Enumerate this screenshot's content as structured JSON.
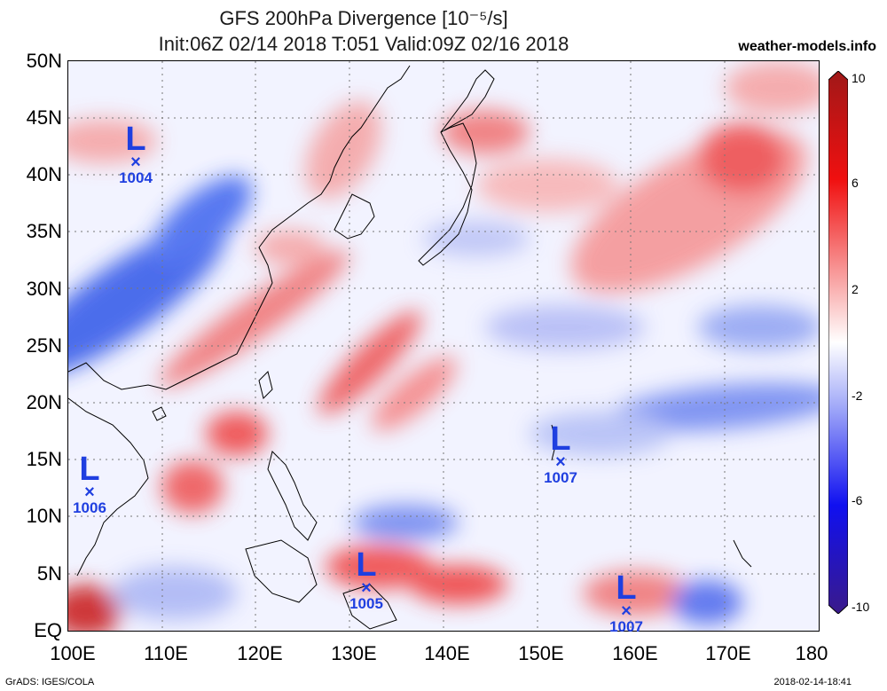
{
  "header": {
    "title_line1": "GFS 200hPa Divergence [10⁻⁵/s]",
    "title_line2": "Init:06Z 02/14 2018 T:051 Valid:09Z 02/16 2018",
    "site": "weather-models.info"
  },
  "axes": {
    "y_labels": [
      "50N",
      "45N",
      "40N",
      "35N",
      "30N",
      "25N",
      "20N",
      "15N",
      "10N",
      "5N",
      "EQ"
    ],
    "x_labels": [
      "100E",
      "110E",
      "120E",
      "130E",
      "140E",
      "150E",
      "160E",
      "170E",
      "180"
    ]
  },
  "colorbar": {
    "labels": [
      "10",
      "6",
      "2",
      "-2",
      "-6",
      "-10"
    ],
    "colors": {
      "max": "#b01818",
      "pos": "#f01010",
      "neutral": "#ffffff",
      "neg": "#1010f0",
      "min": "#3a1a8a"
    }
  },
  "lows": [
    {
      "label": "L",
      "marker": "×",
      "pressure": "1004"
    },
    {
      "label": "L",
      "marker": "×",
      "pressure": "1006"
    },
    {
      "label": "L",
      "marker": "×",
      "pressure": "1005"
    },
    {
      "label": "L",
      "marker": "×",
      "pressure": "1007"
    },
    {
      "label": "L",
      "marker": "×",
      "pressure": "1007"
    }
  ],
  "footer": {
    "left": "GrADS: IGES/COLA",
    "right": "2018-02-14-18:41"
  }
}
